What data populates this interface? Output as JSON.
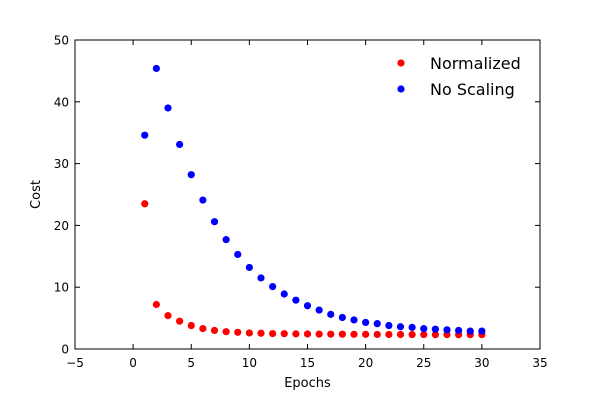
{
  "chart_data": {
    "type": "scatter",
    "title": "",
    "xlabel": "Epochs",
    "ylabel": "Cost",
    "xlim": [
      -5,
      35
    ],
    "ylim": [
      0,
      50
    ],
    "x_ticks": [
      -5,
      0,
      5,
      10,
      15,
      20,
      25,
      30,
      35
    ],
    "y_ticks": [
      0,
      10,
      20,
      30,
      40,
      50
    ],
    "x_tick_labels": [
      "−5",
      "0",
      "5",
      "10",
      "15",
      "20",
      "25",
      "30",
      "35"
    ],
    "y_tick_labels": [
      "0",
      "10",
      "20",
      "30",
      "40",
      "50"
    ],
    "grid": false,
    "legend_position": "top-right",
    "series": [
      {
        "name": "Normalized",
        "color": "#ff0000",
        "x": [
          1,
          2,
          3,
          4,
          5,
          6,
          7,
          8,
          9,
          10,
          11,
          12,
          13,
          14,
          15,
          16,
          17,
          18,
          19,
          20,
          21,
          22,
          23,
          24,
          25,
          26,
          27,
          28,
          29,
          30
        ],
        "y": [
          23.5,
          7.2,
          5.4,
          4.5,
          3.8,
          3.3,
          3.0,
          2.8,
          2.7,
          2.6,
          2.55,
          2.5,
          2.48,
          2.45,
          2.43,
          2.41,
          2.4,
          2.39,
          2.38,
          2.37,
          2.36,
          2.35,
          2.35,
          2.34,
          2.34,
          2.33,
          2.33,
          2.32,
          2.32,
          2.32
        ]
      },
      {
        "name": "No Scaling",
        "color": "#0000ff",
        "x": [
          1,
          2,
          3,
          4,
          5,
          6,
          7,
          8,
          9,
          10,
          11,
          12,
          13,
          14,
          15,
          16,
          17,
          18,
          19,
          20,
          21,
          22,
          23,
          24,
          25,
          26,
          27,
          28,
          29,
          30
        ],
        "y": [
          34.6,
          45.4,
          39.0,
          33.1,
          28.2,
          24.1,
          20.6,
          17.7,
          15.3,
          13.2,
          11.5,
          10.1,
          8.9,
          7.9,
          7.0,
          6.3,
          5.6,
          5.1,
          4.7,
          4.3,
          4.1,
          3.8,
          3.6,
          3.5,
          3.3,
          3.2,
          3.1,
          3.0,
          2.9,
          2.9
        ]
      }
    ]
  }
}
